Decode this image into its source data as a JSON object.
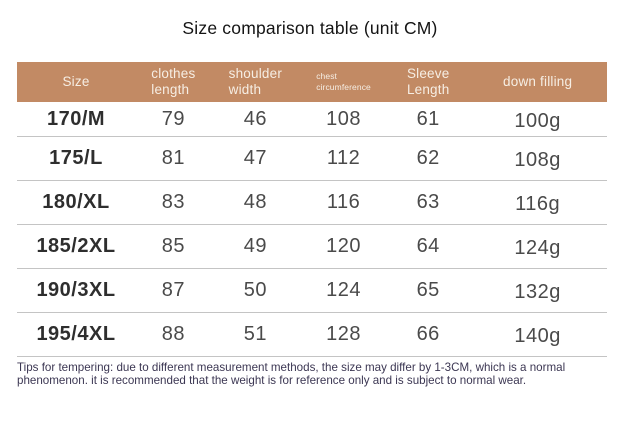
{
  "title": "Size comparison table (unit CM)",
  "table": {
    "columns": [
      {
        "key": "size",
        "lines": [
          "Size"
        ],
        "small": false
      },
      {
        "key": "clothes-length",
        "lines": [
          "clothes",
          "length"
        ],
        "small": false
      },
      {
        "key": "shoulder-width",
        "lines": [
          "shoulder",
          "width"
        ],
        "small": false
      },
      {
        "key": "chest-circumference",
        "lines": [
          "chest",
          "circumference"
        ],
        "small": true
      },
      {
        "key": "sleeve-length",
        "lines": [
          "Sleeve",
          "Length"
        ],
        "small": false
      },
      {
        "key": "down-filling",
        "lines": [
          "down filling"
        ],
        "small": false
      }
    ],
    "rows": [
      [
        "170/M",
        "79",
        "46",
        "108",
        "61",
        "100g"
      ],
      [
        "175/L",
        "81",
        "47",
        "112",
        "62",
        "108g"
      ],
      [
        "180/XL",
        "83",
        "48",
        "116",
        "63",
        "116g"
      ],
      [
        "185/2XL",
        "85",
        "49",
        "120",
        "64",
        "124g"
      ],
      [
        "190/3XL",
        "87",
        "50",
        "124",
        "65",
        "132g"
      ],
      [
        "195/4XL",
        "88",
        "51",
        "128",
        "66",
        "140g"
      ]
    ]
  },
  "footer": "Tips for tempering: due to different measurement methods, the size may differ by 1-3CM, which is a normal phenomenon. it is recommended that the weight is for reference only and is subject to normal wear.",
  "colors": {
    "page_bg": "#ffffff",
    "title_text": "#141414",
    "header_bg": "#C28A64",
    "header_text": "#F6EEE4",
    "size_text": "#2E2E2E",
    "value_text": "#4A4A4A",
    "divider": "#C4C4C4",
    "footer_text": "#3C3753"
  }
}
